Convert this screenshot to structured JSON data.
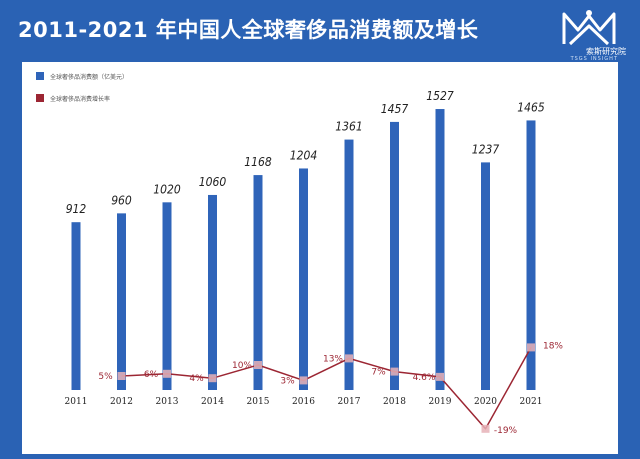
{
  "title": "2011-2021 年中国人全球奢侈品消费额及增长",
  "logo": {
    "icon": "kaleidoscope-logo-icon",
    "name": "索斯研究院",
    "subtitle": "TSGS INSIGHT"
  },
  "colors": {
    "background": "#2a62b4",
    "bar": "#2f64b9",
    "line": "#9c2633",
    "marker_fill": "#e6b2b7",
    "text": "#222222"
  },
  "chart_data": {
    "type": "bar",
    "title": "2011-2021 年中国人全球奢侈品消费额及增长",
    "categories": [
      "2011",
      "2012",
      "2013",
      "2014",
      "2015",
      "2016",
      "2017",
      "2018",
      "2019",
      "2020",
      "2021"
    ],
    "series": [
      {
        "name": "全球奢侈品消费额（亿美元）",
        "type": "bar",
        "values": [
          912,
          960,
          1020,
          1060,
          1168,
          1204,
          1361,
          1457,
          1527,
          1237,
          1465
        ]
      },
      {
        "name": "全球奢侈品消费增长率",
        "type": "line",
        "values": [
          null,
          5,
          6,
          4,
          10,
          3,
          13,
          7,
          4.6,
          -19,
          18
        ],
        "labels": [
          "",
          "5%",
          "6%",
          "4%",
          "10%",
          "3%",
          "13%",
          "7%",
          "4.6%",
          "-19%",
          "18%"
        ]
      }
    ],
    "legend": "top-left",
    "grid": false
  }
}
